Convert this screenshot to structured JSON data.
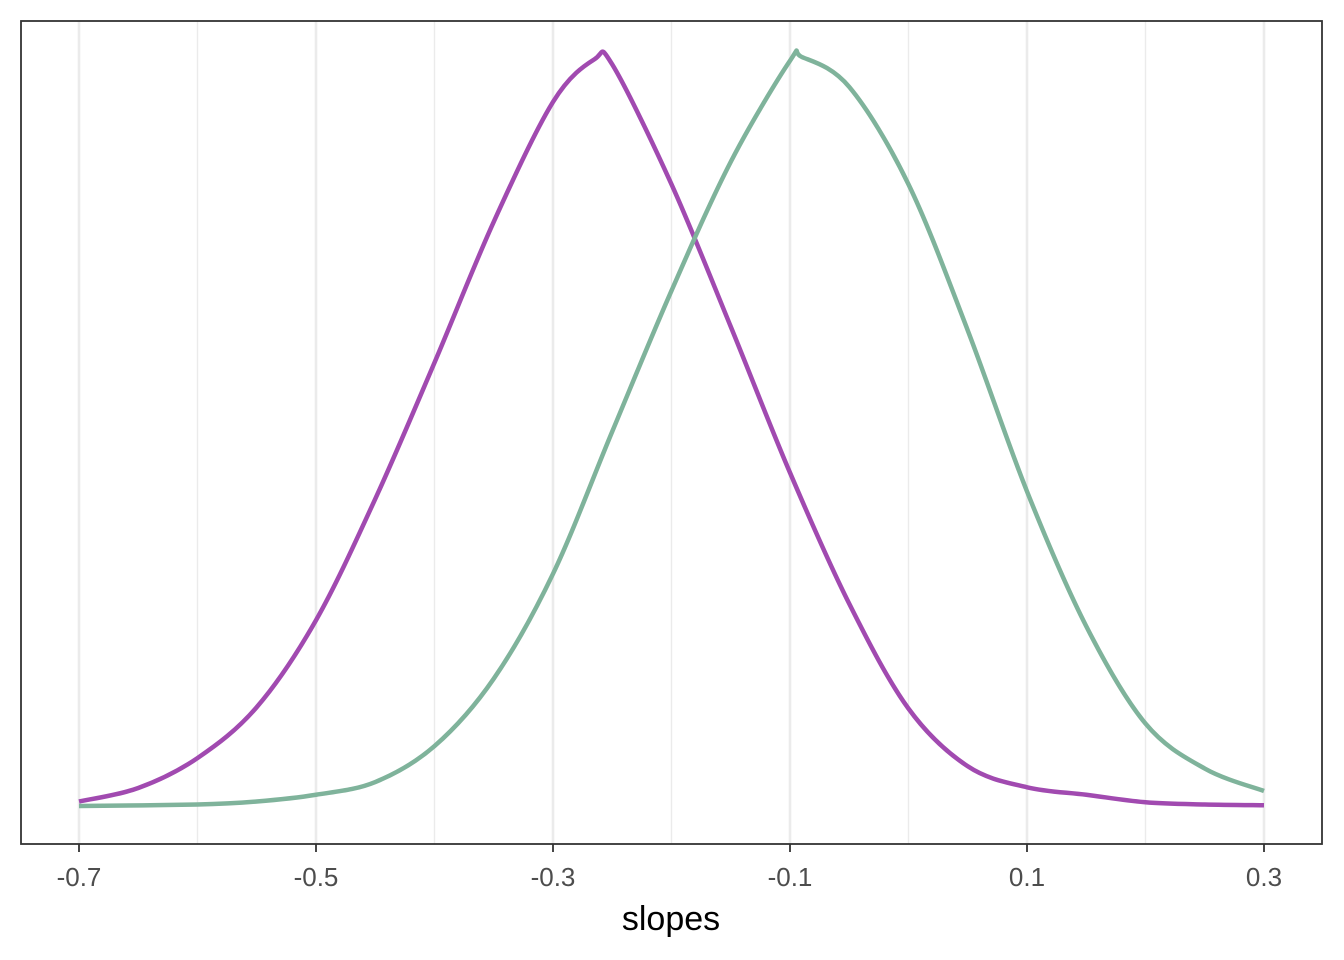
{
  "chart_data": {
    "type": "line",
    "title": "",
    "xlabel": "slopes",
    "ylabel": "",
    "xlim": [
      -0.7,
      0.3
    ],
    "x_ticks": [
      -0.7,
      -0.5,
      -0.3,
      -0.1,
      0.1,
      0.3
    ],
    "x_tick_labels": [
      "-0.7",
      "-0.5",
      "-0.3",
      "-0.1",
      "0.1",
      "0.3"
    ],
    "minor_gridlines_x": [
      -0.6,
      -0.4,
      -0.2,
      0.0,
      0.2
    ],
    "grid": "vertical only",
    "y_ticks_shown": false,
    "legend": "none",
    "series": [
      {
        "color": "#a14ab0",
        "x": [
          -0.7,
          -0.65,
          -0.6,
          -0.55,
          -0.5,
          -0.45,
          -0.4,
          -0.35,
          -0.3,
          -0.265,
          -0.25,
          -0.2,
          -0.15,
          -0.1,
          -0.05,
          0.0,
          0.05,
          0.1,
          0.15,
          0.2,
          0.25,
          0.3
        ],
        "y": [
          0.006,
          0.024,
          0.064,
          0.132,
          0.248,
          0.41,
          0.592,
          0.78,
          0.94,
          0.997,
          0.99,
          0.83,
          0.64,
          0.445,
          0.27,
          0.13,
          0.053,
          0.025,
          0.015,
          0.005,
          0.002,
          0.001
        ]
      },
      {
        "color": "#7fb39b",
        "x": [
          -0.7,
          -0.6,
          -0.55,
          -0.5,
          -0.45,
          -0.4,
          -0.35,
          -0.3,
          -0.25,
          -0.2,
          -0.15,
          -0.1,
          -0.09,
          -0.05,
          0.0,
          0.05,
          0.1,
          0.15,
          0.2,
          0.25,
          0.3
        ],
        "y": [
          0.0,
          0.002,
          0.006,
          0.015,
          0.032,
          0.08,
          0.17,
          0.31,
          0.5,
          0.688,
          0.86,
          0.995,
          1.0,
          0.96,
          0.83,
          0.635,
          0.42,
          0.24,
          0.11,
          0.05,
          0.02
        ]
      }
    ]
  }
}
